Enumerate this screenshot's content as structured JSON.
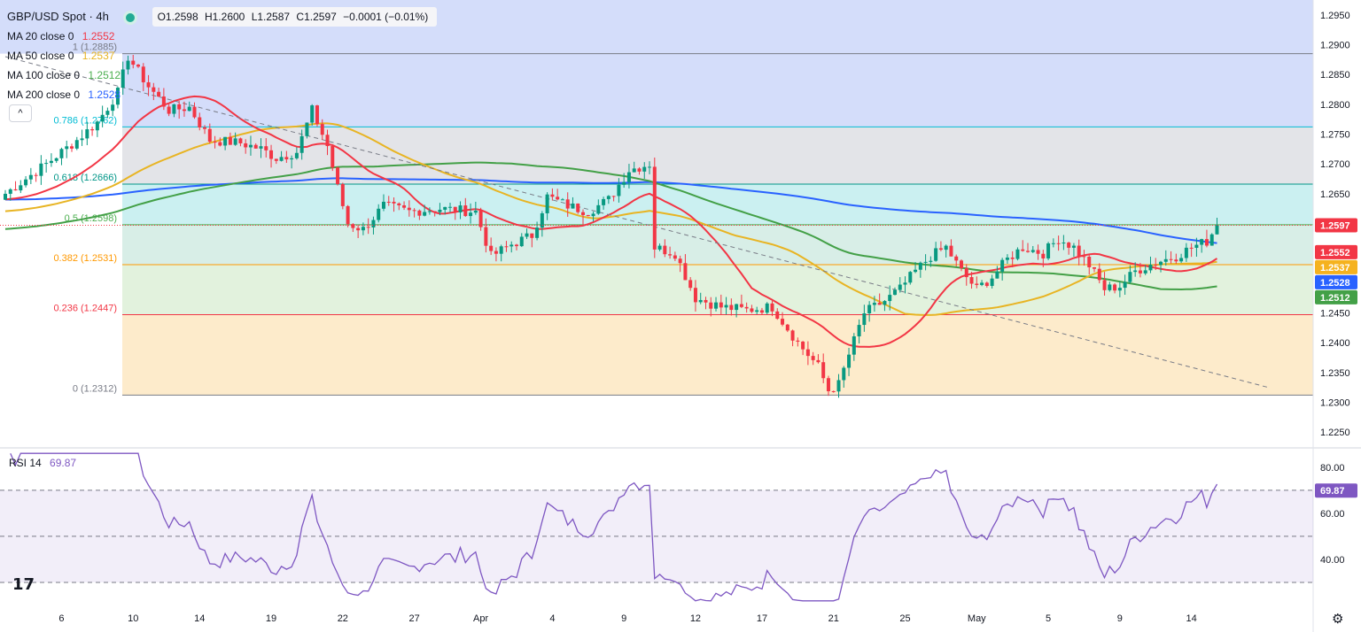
{
  "header": {
    "symbol": "GBP/USD Spot · 4h",
    "open": "O1.2598",
    "high": "H1.2600",
    "low": "L1.2587",
    "close": "C1.2597",
    "change": "−0.0001 (−0.01%)"
  },
  "indicators": [
    {
      "label": "MA 20 close 0",
      "value": "1.2552",
      "color": "#f23645"
    },
    {
      "label": "MA 50 close 0",
      "value": "1.2537",
      "color": "#e8b423"
    },
    {
      "label": "MA 100 close 0",
      "value": "1.2512",
      "color": "#4caf50"
    },
    {
      "label": "MA 200 close 0",
      "value": "1.2528",
      "color": "#2962ff"
    }
  ],
  "collapse_label": "^",
  "rsi": {
    "label": "RSI 14",
    "value": "69.87",
    "color": "#7e57c2"
  },
  "logo_text": "17",
  "settings_icon": "⚙",
  "chart_data": {
    "type": "candlestick",
    "price_axis": {
      "ylim": [
        1.2225,
        1.2975
      ],
      "ticks": [
        "1.2950",
        "1.2900",
        "1.2850",
        "1.2800",
        "1.2750",
        "1.2700",
        "1.2650",
        "1.2600",
        "1.2550",
        "1.2500",
        "1.2450",
        "1.2400",
        "1.2350",
        "1.2300",
        "1.2250"
      ]
    },
    "x_ticks": [
      {
        "label": "6",
        "idx": 11
      },
      {
        "label": "10",
        "idx": 25
      },
      {
        "label": "14",
        "idx": 38
      },
      {
        "label": "19",
        "idx": 52
      },
      {
        "label": "22",
        "idx": 66
      },
      {
        "label": "27",
        "idx": 80
      },
      {
        "label": "Apr",
        "idx": 93
      },
      {
        "label": "4",
        "idx": 107
      },
      {
        "label": "9",
        "idx": 121
      },
      {
        "label": "12",
        "idx": 135
      },
      {
        "label": "17",
        "idx": 148
      },
      {
        "label": "21",
        "idx": 162
      },
      {
        "label": "25",
        "idx": 176
      },
      {
        "label": "May",
        "idx": 190
      },
      {
        "label": "5",
        "idx": 204
      },
      {
        "label": "9",
        "idx": 218
      },
      {
        "label": "14",
        "idx": 232
      }
    ],
    "fib_levels": [
      {
        "label": "1 (1.2885)",
        "value": 1.2885,
        "line": "#787b86",
        "fill": "#d4ddfa"
      },
      {
        "label": "0.786 (1.2762)",
        "value": 1.2762,
        "line": "#00bcd4",
        "fill": "#e3e4e8"
      },
      {
        "label": "0.618 (1.2666)",
        "value": 1.2666,
        "line": "#009688",
        "fill": "#cbf0f1"
      },
      {
        "label": "0.5 (1.2598)",
        "value": 1.2598,
        "line": "#4caf50",
        "fill": "#d8eee7"
      },
      {
        "label": "0.382 (1.2531)",
        "value": 1.2531,
        "line": "#ff9800",
        "fill": "#e2f2dd"
      },
      {
        "label": "0.236 (1.2447)",
        "value": 1.2447,
        "line": "#f23645",
        "fill": "#fdebcb"
      },
      {
        "label": "0 (1.2312)",
        "value": 1.2312,
        "line": "#787b86",
        "fill": "#fbd7db"
      }
    ],
    "last_price": {
      "value": 1.2597,
      "label": "1.2597"
    },
    "ma_last": [
      {
        "value": 1.2552,
        "label": "1.2552",
        "color": "#f23645"
      },
      {
        "value": 1.2537,
        "label": "1.2537",
        "color": "#f5b21f"
      },
      {
        "value": 1.2528,
        "label": "1.2528",
        "color": "#2962ff"
      },
      {
        "value": 1.2512,
        "label": "1.2512",
        "color": "#43a047"
      }
    ],
    "trendline": {
      "from": [
        0,
        1.288
      ],
      "to": [
        247,
        1.2325
      ]
    },
    "closes_anchor": [
      [
        0,
        1.265
      ],
      [
        8,
        1.27
      ],
      [
        14,
        1.274
      ],
      [
        18,
        1.277
      ],
      [
        22,
        1.282
      ],
      [
        24,
        1.288
      ],
      [
        28,
        1.283
      ],
      [
        32,
        1.279
      ],
      [
        36,
        1.2795
      ],
      [
        40,
        1.274
      ],
      [
        46,
        1.2735
      ],
      [
        50,
        1.2725
      ],
      [
        53,
        1.271
      ],
      [
        57,
        1.272
      ],
      [
        60,
        1.279
      ],
      [
        63,
        1.273
      ],
      [
        65,
        1.266
      ],
      [
        67,
        1.26
      ],
      [
        70,
        1.259
      ],
      [
        74,
        1.263
      ],
      [
        79,
        1.262
      ],
      [
        85,
        1.2625
      ],
      [
        92,
        1.262
      ],
      [
        95,
        1.2545
      ],
      [
        99,
        1.2565
      ],
      [
        103,
        1.258
      ],
      [
        106,
        1.2645
      ],
      [
        110,
        1.263
      ],
      [
        114,
        1.262
      ],
      [
        118,
        1.264
      ],
      [
        122,
        1.269
      ],
      [
        126,
        1.27
      ],
      [
        127,
        1.256
      ],
      [
        131,
        1.255
      ],
      [
        135,
        1.2475
      ],
      [
        140,
        1.246
      ],
      [
        145,
        1.2455
      ],
      [
        150,
        1.246
      ],
      [
        155,
        1.24
      ],
      [
        159,
        1.236
      ],
      [
        161,
        1.232
      ],
      [
        163,
        1.233
      ],
      [
        165,
        1.238
      ],
      [
        168,
        1.245
      ],
      [
        172,
        1.247
      ],
      [
        175,
        1.249
      ],
      [
        178,
        1.252
      ],
      [
        181,
        1.2545
      ],
      [
        184,
        1.256
      ],
      [
        187,
        1.252
      ],
      [
        190,
        1.249
      ],
      [
        193,
        1.251
      ],
      [
        196,
        1.254
      ],
      [
        199,
        1.256
      ],
      [
        203,
        1.255
      ],
      [
        206,
        1.2575
      ],
      [
        209,
        1.256
      ],
      [
        212,
        1.253
      ],
      [
        215,
        1.249
      ],
      [
        218,
        1.2495
      ],
      [
        221,
        1.252
      ],
      [
        225,
        1.2535
      ],
      [
        229,
        1.2545
      ],
      [
        232,
        1.256
      ],
      [
        235,
        1.257
      ],
      [
        237,
        1.2597
      ]
    ],
    "rsi_panel": {
      "ylim": [
        20,
        88
      ],
      "ticks": [
        "80.00",
        "60.00",
        "40.00"
      ],
      "levels": [
        70,
        50,
        30
      ],
      "last": 69.87
    }
  }
}
